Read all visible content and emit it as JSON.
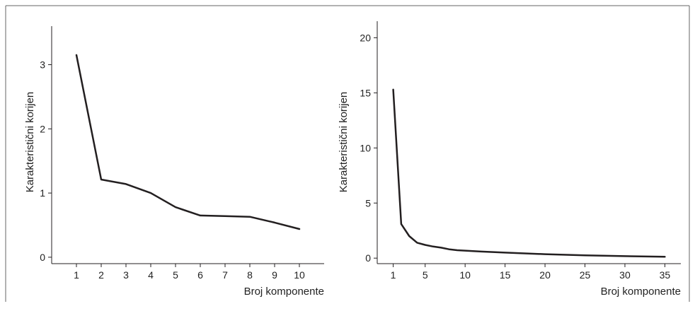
{
  "chart_data": [
    {
      "type": "line",
      "xlabel": "Broj komponente",
      "ylabel": "Karakteristični korijen",
      "x_ticks": [
        1,
        2,
        3,
        4,
        5,
        6,
        7,
        8,
        9,
        10
      ],
      "y_ticks": [
        0,
        1,
        2,
        3
      ],
      "xlim": [
        0,
        11
      ],
      "ylim": [
        -0.1,
        3.6
      ],
      "grid": false,
      "line_color": "#231f20",
      "series": [
        {
          "x": [
            1,
            2,
            3,
            4,
            5,
            6,
            7,
            8,
            9,
            10
          ],
          "y": [
            3.15,
            1.21,
            1.14,
            1.0,
            0.78,
            0.65,
            0.64,
            0.63,
            0.54,
            0.44
          ]
        }
      ]
    },
    {
      "type": "line",
      "xlabel": "Broj komponente",
      "ylabel": "Karakteristični korijen",
      "x_ticks": [
        1,
        5,
        10,
        15,
        20,
        25,
        30,
        35
      ],
      "y_ticks": [
        0,
        5,
        10,
        15,
        20
      ],
      "xlim": [
        -1,
        37
      ],
      "ylim": [
        -0.5,
        21.5
      ],
      "grid": false,
      "line_color": "#231f20",
      "series": [
        {
          "x": [
            1,
            2,
            3,
            4,
            5,
            6,
            7,
            8,
            9,
            10,
            12,
            15,
            20,
            25,
            30,
            35
          ],
          "y": [
            15.3,
            3.1,
            2.0,
            1.4,
            1.2,
            1.05,
            0.95,
            0.8,
            0.72,
            0.68,
            0.6,
            0.5,
            0.36,
            0.26,
            0.18,
            0.12
          ]
        }
      ]
    }
  ]
}
